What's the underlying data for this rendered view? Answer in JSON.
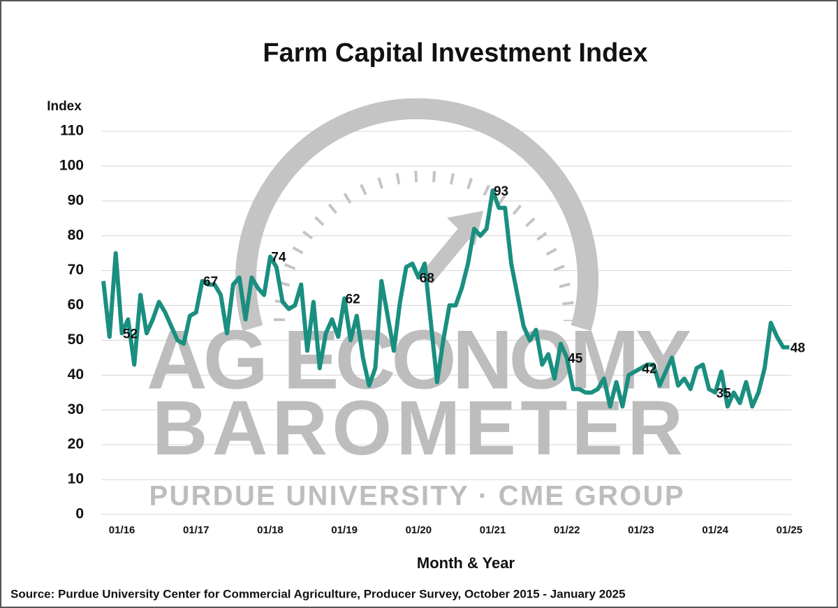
{
  "chart_data": {
    "type": "line",
    "title": "Farm Capital Investment Index",
    "y_label": "Index",
    "x_label": "Month & Year",
    "source": "Source: Purdue University Center for Commercial Agriculture, Producer Survey, October 2015 - January 2025",
    "watermark": [
      "AG ECONOMY",
      "BAROMETER",
      "PURDUE UNIVERSITY · CME GROUP"
    ],
    "categories": [
      null,
      null,
      null,
      "01/16",
      null,
      null,
      null,
      null,
      null,
      null,
      null,
      null,
      null,
      null,
      null,
      "01/17",
      null,
      null,
      null,
      null,
      null,
      null,
      null,
      null,
      null,
      null,
      null,
      "01/18",
      null,
      null,
      null,
      null,
      null,
      null,
      null,
      null,
      null,
      null,
      null,
      "01/19",
      null,
      null,
      null,
      null,
      null,
      null,
      null,
      null,
      null,
      null,
      null,
      "01/20",
      null,
      null,
      null,
      null,
      null,
      null,
      null,
      null,
      null,
      null,
      null,
      "01/21",
      null,
      null,
      null,
      null,
      null,
      null,
      null,
      null,
      null,
      null,
      null,
      "01/22",
      null,
      null,
      null,
      null,
      null,
      null,
      null,
      null,
      null,
      null,
      null,
      "01/23",
      null,
      null,
      null,
      null,
      null,
      null,
      null,
      null,
      null,
      null,
      null,
      "01/24",
      null,
      null,
      null,
      null,
      null,
      null,
      null,
      null,
      null,
      null,
      null,
      "01/25"
    ],
    "series": [
      {
        "name": "Farm Capital Investment Index",
        "color": "#1a8f80",
        "values": [
          67,
          51,
          75,
          52,
          56,
          43,
          63,
          52,
          56,
          61,
          58,
          54,
          50,
          49,
          57,
          58,
          67,
          66,
          66,
          63,
          52,
          66,
          68,
          56,
          68,
          65,
          63,
          74,
          71,
          61,
          59,
          60,
          66,
          47,
          61,
          42,
          52,
          56,
          51,
          62,
          50,
          57,
          45,
          37,
          42,
          67,
          57,
          47,
          61,
          71,
          72,
          68,
          72,
          55,
          38,
          50,
          60,
          60,
          65,
          72,
          82,
          80,
          82,
          93,
          88,
          88,
          72,
          63,
          54,
          50,
          53,
          43,
          46,
          39,
          49,
          45,
          36,
          36,
          35,
          35,
          36,
          39,
          31,
          38,
          31,
          40,
          41,
          42,
          43,
          43,
          37,
          41,
          45,
          37,
          39,
          36,
          42,
          43,
          36,
          35,
          41,
          31,
          35,
          32,
          38,
          31,
          35,
          42,
          55,
          51,
          48,
          48
        ]
      }
    ],
    "labeled_points": [
      3,
      16,
      27,
      39,
      51,
      63,
      75,
      87,
      99,
      111
    ],
    "ylim": [
      0,
      110
    ],
    "yticks": [
      0,
      10,
      20,
      30,
      40,
      50,
      60,
      70,
      80,
      90,
      100,
      110
    ],
    "grid": true
  }
}
